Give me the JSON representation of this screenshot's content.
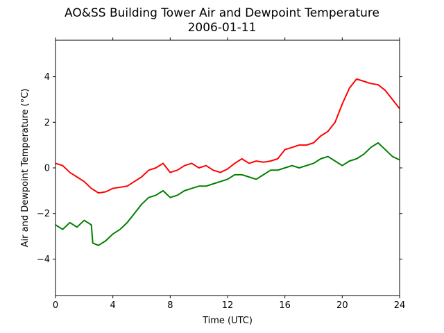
{
  "chart_data": {
    "type": "line",
    "title": "AO&SS Building Tower Air and Dewpoint Temperature",
    "subtitle": "2006-01-11",
    "xlabel": "Time (UTC)",
    "ylabel": "Air and Dewpoint Temperature (°C)",
    "xlim": [
      0,
      24
    ],
    "ylim": [
      -5.6,
      5.6
    ],
    "xticks": [
      0,
      4,
      8,
      12,
      16,
      20,
      24
    ],
    "xtick_labels": [
      "0",
      "4",
      "8",
      "12",
      "16",
      "20",
      "24"
    ],
    "yticks": [
      -4,
      -2,
      0,
      2,
      4
    ],
    "ytick_labels": [
      "−4",
      "−2",
      "0",
      "2",
      "4"
    ],
    "grid": false,
    "legend": false,
    "series": [
      {
        "color": "#ff0000",
        "x": [
          0,
          0.5,
          1,
          1.5,
          2,
          2.5,
          3,
          3.5,
          4,
          4.5,
          5,
          5.5,
          6,
          6.5,
          7,
          7.5,
          8,
          8.5,
          9,
          9.5,
          10,
          10.5,
          11,
          11.5,
          12,
          12.5,
          13,
          13.5,
          14,
          14.5,
          15,
          15.5,
          16,
          16.5,
          17,
          17.5,
          18,
          18.5,
          19,
          19.5,
          20,
          20.5,
          21,
          21.5,
          22,
          22.5,
          23,
          23.5,
          24
        ],
        "y": [
          0.2,
          0.1,
          -0.2,
          -0.4,
          -0.6,
          -0.9,
          -1.1,
          -1.05,
          -0.9,
          -0.85,
          -0.8,
          -0.6,
          -0.4,
          -0.1,
          0.0,
          0.2,
          -0.2,
          -0.1,
          0.1,
          0.2,
          0.0,
          0.1,
          -0.1,
          -0.2,
          -0.05,
          0.2,
          0.4,
          0.2,
          0.3,
          0.25,
          0.3,
          0.4,
          0.8,
          0.9,
          1.0,
          1.0,
          1.1,
          1.4,
          1.6,
          2.0,
          2.8,
          3.5,
          3.9,
          3.8,
          3.7,
          3.65,
          3.4,
          3.0,
          2.6
        ]
      },
      {
        "color": "#008000",
        "x": [
          0,
          0.5,
          1,
          1.5,
          2,
          2.5,
          2.6,
          3,
          3.5,
          4,
          4.5,
          5,
          5.5,
          6,
          6.5,
          7,
          7.5,
          8,
          8.5,
          9,
          9.5,
          10,
          10.5,
          11,
          11.5,
          12,
          12.5,
          13,
          13.5,
          14,
          14.5,
          15,
          15.5,
          16,
          16.5,
          17,
          17.5,
          18,
          18.5,
          19,
          19.5,
          20,
          20.5,
          21,
          21.5,
          22,
          22.5,
          23,
          23.5,
          24
        ],
        "y": [
          -2.5,
          -2.7,
          -2.4,
          -2.6,
          -2.3,
          -2.5,
          -3.3,
          -3.4,
          -3.2,
          -2.9,
          -2.7,
          -2.4,
          -2.0,
          -1.6,
          -1.3,
          -1.2,
          -1.0,
          -1.3,
          -1.2,
          -1.0,
          -0.9,
          -0.8,
          -0.8,
          -0.7,
          -0.6,
          -0.5,
          -0.3,
          -0.3,
          -0.4,
          -0.5,
          -0.3,
          -0.1,
          -0.1,
          0.0,
          0.1,
          0.0,
          0.1,
          0.2,
          0.4,
          0.5,
          0.3,
          0.1,
          0.3,
          0.4,
          0.6,
          0.9,
          1.1,
          0.8,
          0.5,
          0.35
        ]
      }
    ]
  }
}
